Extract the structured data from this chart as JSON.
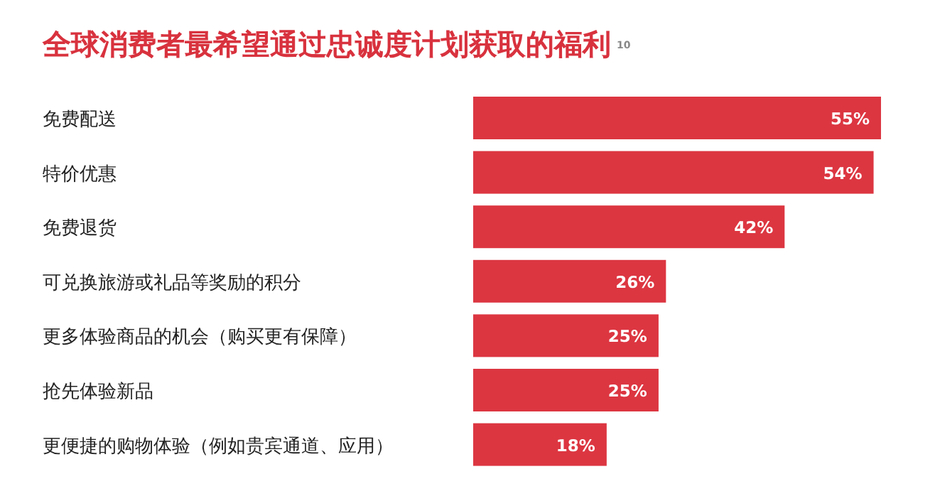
{
  "chart_data": {
    "type": "bar",
    "orientation": "horizontal",
    "title": "全球消费者最希望通过忠诚度计划获取的福利$^{10}$",
    "categories": [
      "免费配送",
      "特价优惠",
      "免费退货",
      "可兑换旅游或礼品等奖励的积分",
      "更多体验商品的机会（购买更有保障）",
      "抢先体验新品",
      "更便捷的购物体验（例如贵宾通道、应用）"
    ],
    "values": [
      55,
      54,
      42,
      26,
      25,
      25,
      18
    ],
    "value_labels": [
      "55%",
      "54%",
      "42%",
      "26%",
      "25%",
      "25%",
      "18%"
    ],
    "color": "#dc3641"
  }
}
